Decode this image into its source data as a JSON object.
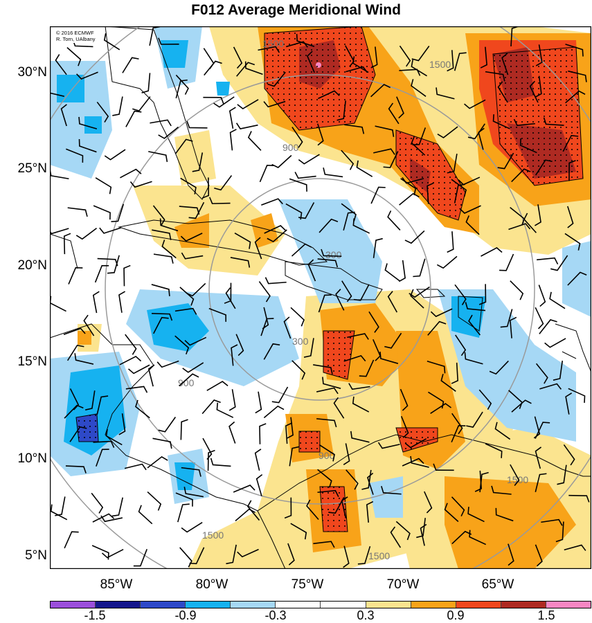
{
  "title": "F012 Average Meridional Wind",
  "credit": [
    "© 2016 ECMWF",
    "R. Torn, UAlbany"
  ],
  "lat_labels": [
    "30°N",
    "25°N",
    "20°N",
    "15°N",
    "10°N",
    "5°N"
  ],
  "lon_labels": [
    "85°W",
    "80°W",
    "75°W",
    "70°W",
    "65°W"
  ],
  "map_extent": {
    "lon_min": -88,
    "lon_max": -60,
    "lat_min": 4.5,
    "lat_max": 32
  },
  "range_rings": {
    "labels": [
      "300",
      "900",
      "1500"
    ]
  },
  "colorbar": {
    "colors": [
      "#9b4fdb",
      "#14168c",
      "#2e49c8",
      "#16b2f0",
      "#a6d8f5",
      "#ffffff",
      "#ffffff",
      "#fbe48f",
      "#f8a319",
      "#f0471d",
      "#ae2a22",
      "#f787c3"
    ],
    "labels": [
      "-1.5",
      "-0.9",
      "-0.3",
      "0.3",
      "0.9",
      "1.5"
    ]
  },
  "colors": {
    "ring": "#9a9a9a",
    "coast": "#000000"
  }
}
